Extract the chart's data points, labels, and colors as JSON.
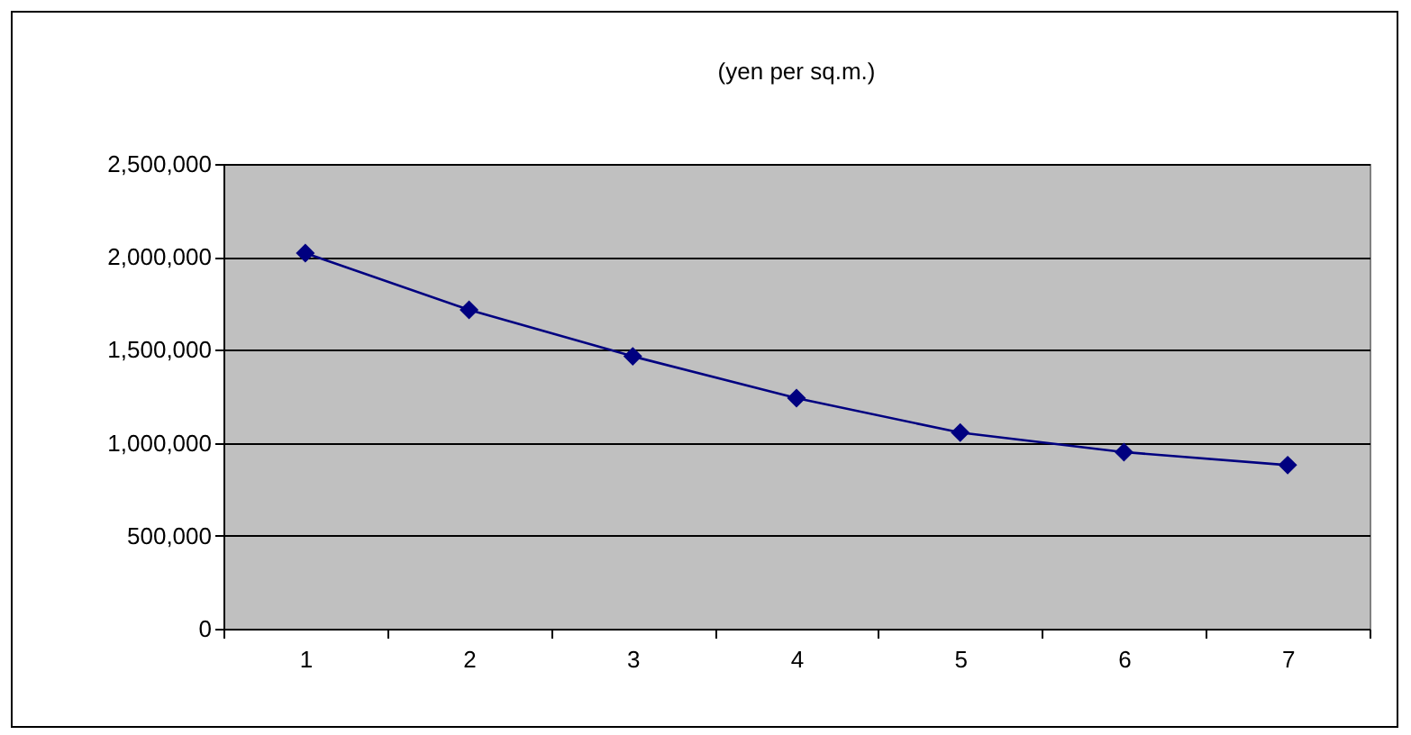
{
  "chart_data": {
    "type": "line",
    "title": "(yen per sq.m.)",
    "categories": [
      "1",
      "2",
      "3",
      "4",
      "5",
      "6",
      "7"
    ],
    "series": [
      {
        "color": "#000080",
        "values": [
          2020000,
          1715000,
          1465000,
          1240000,
          1055000,
          950000,
          880000
        ]
      }
    ],
    "ylim": [
      0,
      2500000
    ],
    "yticks": [
      {
        "value": 0,
        "label": "0"
      },
      {
        "value": 500000,
        "label": "500,000"
      },
      {
        "value": 1000000,
        "label": "1,000,000"
      },
      {
        "value": 1500000,
        "label": "1,500,000"
      },
      {
        "value": 2000000,
        "label": "2,000,000"
      },
      {
        "value": 2500000,
        "label": "2,500,000"
      }
    ],
    "grid": "y",
    "marker": "diamond",
    "line_style": "solid",
    "legend": false
  }
}
